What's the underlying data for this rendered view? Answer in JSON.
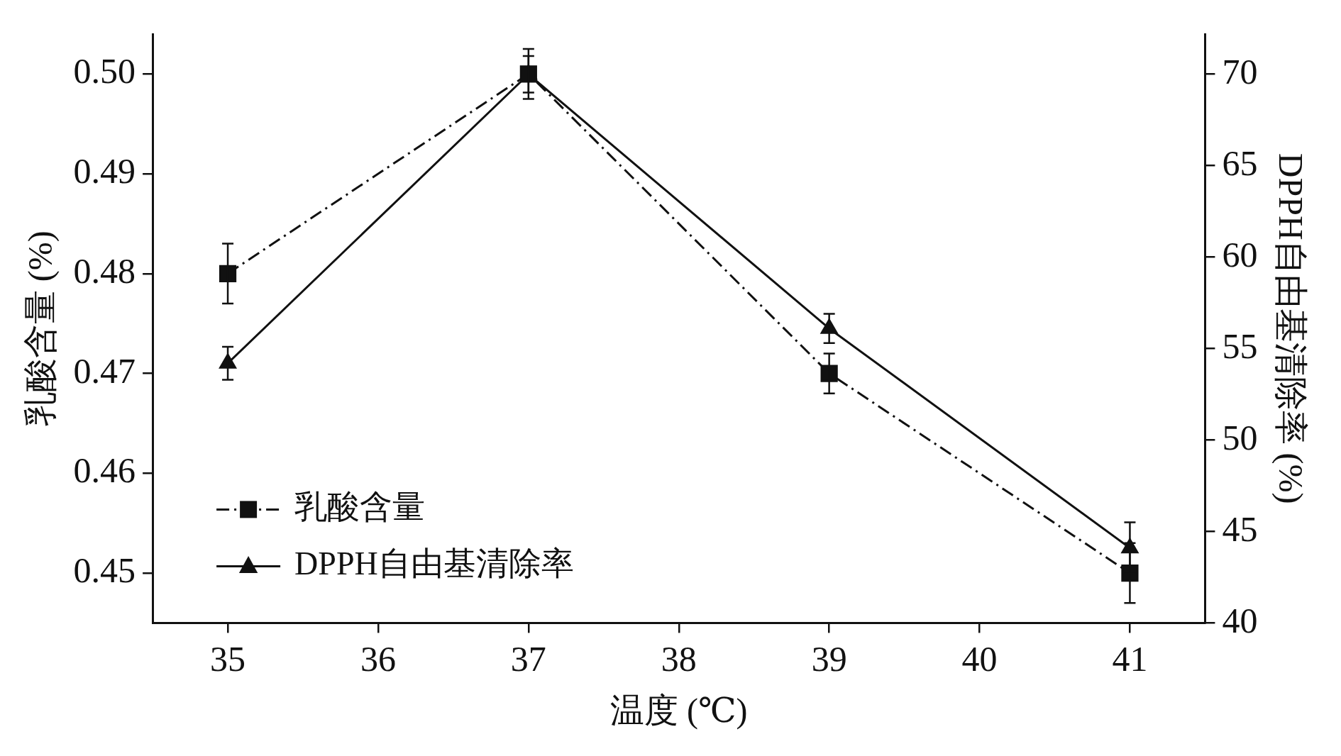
{
  "chart_data": {
    "type": "line",
    "xlabel": "温度 (℃)",
    "ylabel": "乳酸含量 (%)",
    "y2label": "DPPH自由基清除率 (%)",
    "x": [
      35,
      37,
      39,
      41
    ],
    "xlim": [
      34.5,
      41.5
    ],
    "xticks": [
      35,
      36,
      37,
      38,
      39,
      40,
      41
    ],
    "ylim": [
      0.445,
      0.504
    ],
    "yticks": [
      {
        "value": 0.45,
        "label": "0.45"
      },
      {
        "value": 0.46,
        "label": "0.46"
      },
      {
        "value": 0.47,
        "label": "0.47"
      },
      {
        "value": 0.48,
        "label": "0.48"
      },
      {
        "value": 0.49,
        "label": "0.49"
      },
      {
        "value": 0.5,
        "label": "0.50"
      }
    ],
    "y2lim": [
      40,
      72.2
    ],
    "y2ticks": [
      40,
      45,
      50,
      55,
      60,
      65,
      70
    ],
    "grid": false,
    "legend": "bottom left",
    "series": [
      {
        "name": "乳酸含量",
        "color": "#111111",
        "values": [
          0.48,
          0.5,
          0.47,
          0.45
        ],
        "errors": [
          0.003,
          0.0025,
          0.002,
          0.003
        ],
        "marker": "square",
        "line_style": "dashdot"
      },
      {
        "name": "DPPH自由基清除率",
        "color": "#111111",
        "values": [
          54.2,
          70,
          56.1,
          44.1
        ],
        "errors": [
          0.9,
          1,
          0.8,
          1.4
        ],
        "marker": "triangle",
        "line_style": "solid",
        "axis": "y2"
      }
    ]
  }
}
